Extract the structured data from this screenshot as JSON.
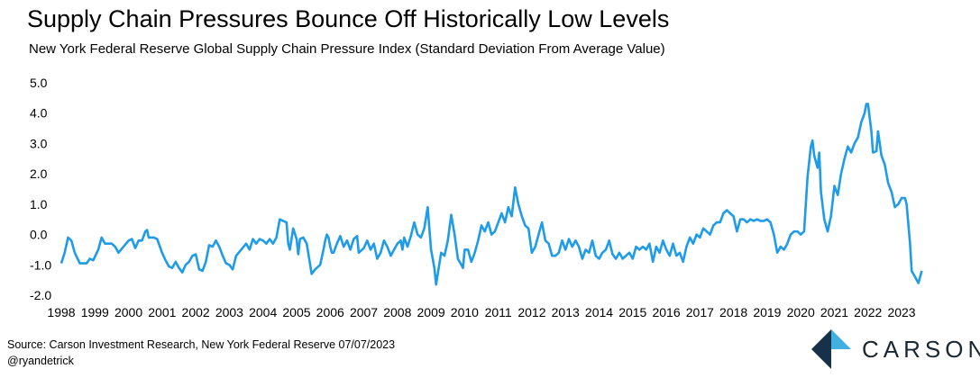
{
  "header": {
    "title": "Supply Chain Pressures Bounce Off Historically Low Levels",
    "subtitle": "New York Federal Reserve Global Supply Chain Pressure Index (Standard Deviation From Average Value)"
  },
  "footer": {
    "source": "Source: Carson Investment Research, New York Federal Reserve 07/07/2023",
    "handle": "@ryandetrick",
    "logo_text": "CARSON"
  },
  "colors": {
    "line": "#1E9BE9",
    "logo_dark": "#16324A",
    "logo_light": "#3FB0E0"
  },
  "chart_data": {
    "type": "line",
    "title": "",
    "xlabel": "",
    "ylabel": "",
    "ylim": [
      -2.0,
      5.0
    ],
    "y_ticks": [
      "5.0",
      "4.0",
      "3.0",
      "2.0",
      "1.0",
      "0.0",
      "-1.0",
      "-2.0"
    ],
    "x_ticks": [
      "1998",
      "1999",
      "2000",
      "2001",
      "2002",
      "2003",
      "2004",
      "2005",
      "2006",
      "2007",
      "2008",
      "2009",
      "2010",
      "2011",
      "2012",
      "2013",
      "2014",
      "2015",
      "2016",
      "2017",
      "2018",
      "2019",
      "2020",
      "2021",
      "2022",
      "2023"
    ],
    "grid": false,
    "legend": "none",
    "series": [
      {
        "values": [
          [
            1998.0,
            -0.95
          ],
          [
            1998.1,
            -0.6
          ],
          [
            1998.2,
            -0.1
          ],
          [
            1998.3,
            -0.2
          ],
          [
            1998.4,
            -0.6
          ],
          [
            1998.55,
            -0.95
          ],
          [
            1998.75,
            -0.95
          ],
          [
            1998.85,
            -0.8
          ],
          [
            1998.95,
            -0.85
          ],
          [
            1999.1,
            -0.5
          ],
          [
            1999.2,
            -0.1
          ],
          [
            1999.3,
            -0.3
          ],
          [
            1999.5,
            -0.3
          ],
          [
            1999.6,
            -0.4
          ],
          [
            1999.7,
            -0.6
          ],
          [
            1999.85,
            -0.4
          ],
          [
            2000.0,
            -0.2
          ],
          [
            2000.1,
            -0.15
          ],
          [
            2000.2,
            -0.45
          ],
          [
            2000.3,
            -0.2
          ],
          [
            2000.4,
            -0.2
          ],
          [
            2000.5,
            0.1
          ],
          [
            2000.55,
            0.15
          ],
          [
            2000.6,
            -0.1
          ],
          [
            2000.75,
            -0.1
          ],
          [
            2000.85,
            -0.15
          ],
          [
            2001.0,
            -0.6
          ],
          [
            2001.1,
            -0.85
          ],
          [
            2001.2,
            -1.05
          ],
          [
            2001.3,
            -1.1
          ],
          [
            2001.4,
            -0.9
          ],
          [
            2001.5,
            -1.1
          ],
          [
            2001.6,
            -1.25
          ],
          [
            2001.7,
            -1.0
          ],
          [
            2001.8,
            -0.9
          ],
          [
            2001.9,
            -0.7
          ],
          [
            2002.0,
            -0.65
          ],
          [
            2002.1,
            -1.15
          ],
          [
            2002.2,
            -1.2
          ],
          [
            2002.3,
            -0.9
          ],
          [
            2002.4,
            -0.35
          ],
          [
            2002.5,
            -0.4
          ],
          [
            2002.6,
            -0.2
          ],
          [
            2002.7,
            -0.4
          ],
          [
            2002.8,
            -0.7
          ],
          [
            2002.9,
            -0.95
          ],
          [
            2003.0,
            -1.0
          ],
          [
            2003.1,
            -1.15
          ],
          [
            2003.2,
            -0.7
          ],
          [
            2003.35,
            -0.5
          ],
          [
            2003.5,
            -0.3
          ],
          [
            2003.6,
            -0.5
          ],
          [
            2003.7,
            -0.15
          ],
          [
            2003.8,
            -0.3
          ],
          [
            2003.9,
            -0.15
          ],
          [
            2004.0,
            -0.2
          ],
          [
            2004.1,
            -0.3
          ],
          [
            2004.2,
            -0.15
          ],
          [
            2004.3,
            -0.3
          ],
          [
            2004.4,
            -0.1
          ],
          [
            2004.5,
            0.5
          ],
          [
            2004.6,
            0.45
          ],
          [
            2004.7,
            0.4
          ],
          [
            2004.75,
            -0.3
          ],
          [
            2004.8,
            -0.5
          ],
          [
            2004.9,
            0.2
          ],
          [
            2005.0,
            -0.15
          ],
          [
            2005.05,
            -0.65
          ],
          [
            2005.1,
            -0.15
          ],
          [
            2005.2,
            -0.1
          ],
          [
            2005.3,
            -0.3
          ],
          [
            2005.45,
            -1.3
          ],
          [
            2005.55,
            -1.15
          ],
          [
            2005.6,
            -1.1
          ],
          [
            2005.7,
            -1.0
          ],
          [
            2005.8,
            -0.5
          ],
          [
            2005.85,
            -0.2
          ],
          [
            2005.9,
            0.0
          ],
          [
            2005.95,
            -0.1
          ],
          [
            2006.0,
            -0.4
          ],
          [
            2006.05,
            -0.6
          ],
          [
            2006.1,
            -0.6
          ],
          [
            2006.2,
            -0.3
          ],
          [
            2006.3,
            -0.05
          ],
          [
            2006.4,
            -0.4
          ],
          [
            2006.5,
            -0.2
          ],
          [
            2006.6,
            -0.5
          ],
          [
            2006.7,
            -0.15
          ],
          [
            2006.8,
            -0.05
          ],
          [
            2006.85,
            -0.6
          ],
          [
            2007.0,
            -0.45
          ],
          [
            2007.1,
            -0.2
          ],
          [
            2007.2,
            -0.5
          ],
          [
            2007.3,
            -0.3
          ],
          [
            2007.4,
            -0.8
          ],
          [
            2007.5,
            -0.6
          ],
          [
            2007.6,
            -0.2
          ],
          [
            2007.7,
            -0.4
          ],
          [
            2007.8,
            -0.7
          ],
          [
            2007.9,
            -0.5
          ],
          [
            2008.0,
            -0.3
          ],
          [
            2008.1,
            -0.2
          ],
          [
            2008.15,
            -0.5
          ],
          [
            2008.2,
            -0.1
          ],
          [
            2008.3,
            -0.4
          ],
          [
            2008.4,
            -0.05
          ],
          [
            2008.5,
            0.4
          ],
          [
            2008.55,
            0.2
          ],
          [
            2008.6,
            0.0
          ],
          [
            2008.7,
            -0.1
          ],
          [
            2008.8,
            0.2
          ],
          [
            2008.9,
            0.9
          ],
          [
            2009.0,
            -0.5
          ],
          [
            2009.1,
            -1.1
          ],
          [
            2009.15,
            -1.65
          ],
          [
            2009.3,
            -0.6
          ],
          [
            2009.4,
            -0.7
          ],
          [
            2009.5,
            -0.2
          ],
          [
            2009.6,
            0.65
          ],
          [
            2009.7,
            0.0
          ],
          [
            2009.8,
            -0.8
          ],
          [
            2009.9,
            -1.0
          ],
          [
            2009.95,
            -1.1
          ],
          [
            2010.0,
            -0.5
          ],
          [
            2010.1,
            -0.5
          ],
          [
            2010.2,
            -0.9
          ],
          [
            2010.3,
            -0.6
          ],
          [
            2010.4,
            -0.2
          ],
          [
            2010.5,
            0.3
          ],
          [
            2010.6,
            0.1
          ],
          [
            2010.7,
            0.4
          ],
          [
            2010.8,
            0.0
          ],
          [
            2010.9,
            0.1
          ],
          [
            2011.0,
            0.4
          ],
          [
            2011.1,
            0.7
          ],
          [
            2011.2,
            0.4
          ],
          [
            2011.3,
            0.9
          ],
          [
            2011.4,
            0.6
          ],
          [
            2011.5,
            1.55
          ],
          [
            2011.6,
            1.0
          ],
          [
            2011.7,
            0.6
          ],
          [
            2011.8,
            0.3
          ],
          [
            2011.9,
            0.2
          ],
          [
            2012.0,
            -0.6
          ],
          [
            2012.1,
            -0.4
          ],
          [
            2012.2,
            0.0
          ],
          [
            2012.3,
            0.4
          ],
          [
            2012.4,
            -0.2
          ],
          [
            2012.5,
            -0.3
          ],
          [
            2012.6,
            -0.7
          ],
          [
            2012.7,
            -0.7
          ],
          [
            2012.8,
            -0.6
          ],
          [
            2012.9,
            -0.2
          ],
          [
            2013.0,
            -0.5
          ],
          [
            2013.1,
            -0.15
          ],
          [
            2013.2,
            -0.4
          ],
          [
            2013.3,
            -0.2
          ],
          [
            2013.4,
            -0.4
          ],
          [
            2013.5,
            -0.8
          ],
          [
            2013.6,
            -0.5
          ],
          [
            2013.7,
            -0.6
          ],
          [
            2013.8,
            -0.2
          ],
          [
            2013.9,
            -0.7
          ],
          [
            2014.0,
            -0.8
          ],
          [
            2014.1,
            -0.6
          ],
          [
            2014.2,
            -0.5
          ],
          [
            2014.3,
            -0.2
          ],
          [
            2014.4,
            -0.65
          ],
          [
            2014.5,
            -0.8
          ],
          [
            2014.6,
            -0.6
          ],
          [
            2014.7,
            -0.8
          ],
          [
            2014.8,
            -0.7
          ],
          [
            2014.9,
            -0.6
          ],
          [
            2015.0,
            -0.8
          ],
          [
            2015.1,
            -0.4
          ],
          [
            2015.2,
            -0.5
          ],
          [
            2015.3,
            -0.4
          ],
          [
            2015.4,
            -0.5
          ],
          [
            2015.5,
            -0.3
          ],
          [
            2015.6,
            -0.9
          ],
          [
            2015.7,
            -0.4
          ],
          [
            2015.8,
            -0.6
          ],
          [
            2015.9,
            -0.2
          ],
          [
            2016.0,
            -0.5
          ],
          [
            2016.1,
            -0.7
          ],
          [
            2016.2,
            -0.3
          ],
          [
            2016.3,
            -0.7
          ],
          [
            2016.4,
            -0.6
          ],
          [
            2016.5,
            -0.9
          ],
          [
            2016.6,
            -0.4
          ],
          [
            2016.7,
            -0.1
          ],
          [
            2016.8,
            -0.3
          ],
          [
            2016.9,
            0.0
          ],
          [
            2017.0,
            -0.1
          ],
          [
            2017.1,
            0.2
          ],
          [
            2017.2,
            0.1
          ],
          [
            2017.3,
            0.0
          ],
          [
            2017.4,
            0.3
          ],
          [
            2017.5,
            0.4
          ],
          [
            2017.6,
            0.4
          ],
          [
            2017.7,
            0.7
          ],
          [
            2017.8,
            0.8
          ],
          [
            2017.9,
            0.7
          ],
          [
            2018.0,
            0.6
          ],
          [
            2018.1,
            0.1
          ],
          [
            2018.2,
            0.5
          ],
          [
            2018.3,
            0.5
          ],
          [
            2018.4,
            0.4
          ],
          [
            2018.5,
            0.5
          ],
          [
            2018.6,
            0.45
          ],
          [
            2018.7,
            0.5
          ],
          [
            2018.8,
            0.45
          ],
          [
            2018.9,
            0.45
          ],
          [
            2019.0,
            0.5
          ],
          [
            2019.1,
            0.4
          ],
          [
            2019.2,
            0.0
          ],
          [
            2019.3,
            -0.6
          ],
          [
            2019.4,
            -0.4
          ],
          [
            2019.5,
            -0.5
          ],
          [
            2019.6,
            -0.3
          ],
          [
            2019.7,
            0.0
          ],
          [
            2019.8,
            0.1
          ],
          [
            2019.9,
            0.1
          ],
          [
            2020.0,
            0.0
          ],
          [
            2020.1,
            0.1
          ],
          [
            2020.2,
            1.9
          ],
          [
            2020.3,
            2.9
          ],
          [
            2020.35,
            3.1
          ],
          [
            2020.4,
            2.6
          ],
          [
            2020.5,
            2.2
          ],
          [
            2020.55,
            2.7
          ],
          [
            2020.6,
            1.4
          ],
          [
            2020.7,
            0.5
          ],
          [
            2020.8,
            0.1
          ],
          [
            2020.9,
            0.6
          ],
          [
            2021.0,
            1.6
          ],
          [
            2021.1,
            1.3
          ],
          [
            2021.2,
            2.0
          ],
          [
            2021.3,
            2.5
          ],
          [
            2021.4,
            2.9
          ],
          [
            2021.5,
            2.7
          ],
          [
            2021.6,
            3.0
          ],
          [
            2021.7,
            3.2
          ],
          [
            2021.8,
            3.7
          ],
          [
            2021.9,
            4.0
          ],
          [
            2021.95,
            4.3
          ],
          [
            2022.0,
            4.3
          ],
          [
            2022.1,
            3.4
          ],
          [
            2022.15,
            2.7
          ],
          [
            2022.25,
            2.75
          ],
          [
            2022.3,
            3.4
          ],
          [
            2022.4,
            2.6
          ],
          [
            2022.5,
            2.3
          ],
          [
            2022.6,
            1.7
          ],
          [
            2022.7,
            1.4
          ],
          [
            2022.8,
            0.9
          ],
          [
            2022.9,
            1.0
          ],
          [
            2023.0,
            1.2
          ],
          [
            2023.1,
            1.2
          ],
          [
            2023.15,
            1.0
          ],
          [
            2023.25,
            -0.3
          ],
          [
            2023.3,
            -1.2
          ],
          [
            2023.4,
            -1.4
          ],
          [
            2023.5,
            -1.6
          ],
          [
            2023.6,
            -1.2
          ]
        ]
      }
    ]
  }
}
